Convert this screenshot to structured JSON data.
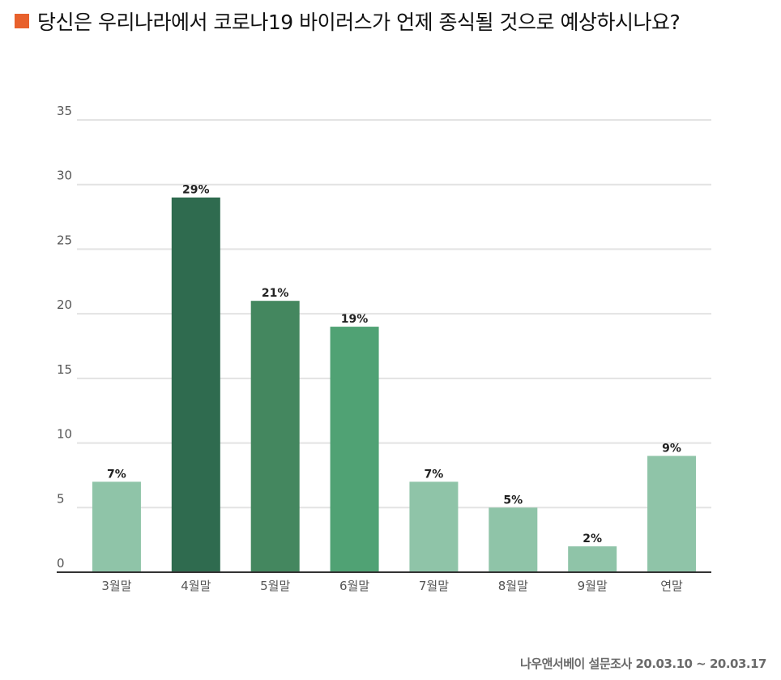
{
  "title": "당신은 우리나라에서 코로나19 바이러스가 언제 종식될 것으로 예상하시나요?",
  "footer": "나우앤서베이 설문조사 20.03.10 ~ 20.03.17",
  "colors": {
    "title_marker": "#e8612c"
  },
  "chart_data": {
    "type": "bar",
    "categories": [
      "3월말",
      "4월말",
      "5월말",
      "6월말",
      "7월말",
      "8월말",
      "9월말",
      "연말"
    ],
    "values": [
      7,
      29,
      21,
      19,
      7,
      5,
      2,
      9
    ],
    "data_labels": [
      "7%",
      "29%",
      "21%",
      "19%",
      "7%",
      "5%",
      "2%",
      "9%"
    ],
    "bar_colors": [
      "#8fc4a8",
      "#2f6b4f",
      "#44875f",
      "#50a274",
      "#8fc4a8",
      "#8fc4a8",
      "#8fc4a8",
      "#8fc4a8"
    ],
    "ylim": [
      0,
      35
    ],
    "yticks": [
      0,
      5,
      10,
      15,
      20,
      25,
      30,
      35
    ],
    "grid": true,
    "xlabel": "",
    "ylabel": ""
  }
}
